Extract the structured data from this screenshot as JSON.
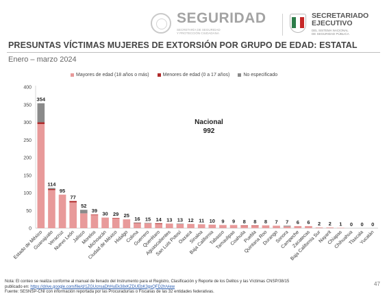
{
  "header": {
    "seguridad_title": "SEGURIDAD",
    "seguridad_sub1": "SECRETARÍA DE SEGURIDAD",
    "seguridad_sub2": "Y PROTECCIÓN CIUDADANA",
    "sesnsp_title1": "SECRETARIADO",
    "sesnsp_title2": "EJECUTIVO",
    "sesnsp_sub1": "DEL SISTEMA NACIONAL",
    "sesnsp_sub2": "DE SEGURIDAD PÚBLICA"
  },
  "page_title": "PRESUNTAS VÍCTIMAS MUJERES DE EXTORSIÓN POR GRUPO DE EDAD: ESTATAL",
  "period": "Enero – marzo 2024",
  "colors": {
    "mayores": "#e89a9a",
    "menores": "#b02a2a",
    "no_especificado": "#8a8a8a"
  },
  "chart_data": {
    "type": "bar",
    "stacked": true,
    "title": "",
    "xlabel": "",
    "ylabel": "",
    "ylim": [
      0,
      400
    ],
    "yticks": [
      0,
      50,
      100,
      150,
      200,
      250,
      300,
      350,
      400
    ],
    "grid": false,
    "legend_position": "top",
    "categories": [
      "Estado de México",
      "Guanajuato",
      "Veracruz",
      "Nuevo León",
      "Jalisco",
      "Morelos",
      "Michoacán",
      "Ciudad de México",
      "Hidalgo",
      "Colima",
      "Guerrero",
      "Querétaro",
      "Aguascalientes",
      "San Luis Potosí",
      "Oaxaca",
      "Sinaloa",
      "Baja California",
      "Tabasco",
      "Tamaulipas",
      "Coahuila",
      "Puebla",
      "Quintana Roo",
      "Durango",
      "Sonora",
      "Campeche",
      "Zacatecas",
      "Baja California Sur",
      "Nayarit",
      "Chiapas",
      "Chihuahua",
      "Tlaxcala",
      "Yucatán"
    ],
    "series": [
      {
        "name": "Mayores de edad (18 años o más)",
        "values": [
          295,
          108,
          95,
          73,
          42,
          38,
          30,
          28,
          25,
          14,
          14,
          12,
          13,
          12,
          12,
          11,
          10,
          9,
          9,
          7,
          7,
          8,
          7,
          5,
          6,
          6,
          2,
          2,
          1,
          0,
          0,
          0
        ]
      },
      {
        "name": "Menores de edad (0 a 17 años)",
        "values": [
          5,
          3,
          0,
          4,
          0,
          1,
          0,
          1,
          0,
          1,
          0,
          2,
          0,
          0,
          0,
          0,
          0,
          0,
          0,
          1,
          1,
          0,
          0,
          0,
          0,
          0,
          0,
          0,
          0,
          0,
          0,
          0
        ]
      },
      {
        "name": "No especificado",
        "values": [
          54,
          3,
          0,
          0,
          10,
          0,
          0,
          0,
          0,
          1,
          1,
          0,
          0,
          1,
          0,
          0,
          0,
          0,
          0,
          0,
          0,
          0,
          0,
          2,
          0,
          0,
          0,
          0,
          0,
          0,
          0,
          0
        ]
      }
    ],
    "totals": [
      354,
      114,
      95,
      77,
      52,
      39,
      30,
      29,
      25,
      16,
      15,
      14,
      13,
      13,
      12,
      11,
      10,
      9,
      9,
      8,
      8,
      8,
      7,
      7,
      6,
      6,
      2,
      2,
      1,
      0,
      0,
      0
    ],
    "annotation_label": "Nacional",
    "annotation_value": "992"
  },
  "notes": {
    "line1": "Nota: El conteo se realiza conforme al manual de llenado del Instrumento para el Registro, Clasificación y Reporte de los Delitos y las Víctimas CNSP/38/15",
    "line2_prefix": "publicado en: ",
    "line2_link": "https://drive.google.com/file/d/1ZGUcnsaDhHuEk38xKZDUEbK3gxQFD2h/view",
    "line3": "Fuente: SESNSP-CNI con información reportada por las Procuradurías o Fiscalías de las 32 entidades federativas."
  },
  "page_number": "47"
}
